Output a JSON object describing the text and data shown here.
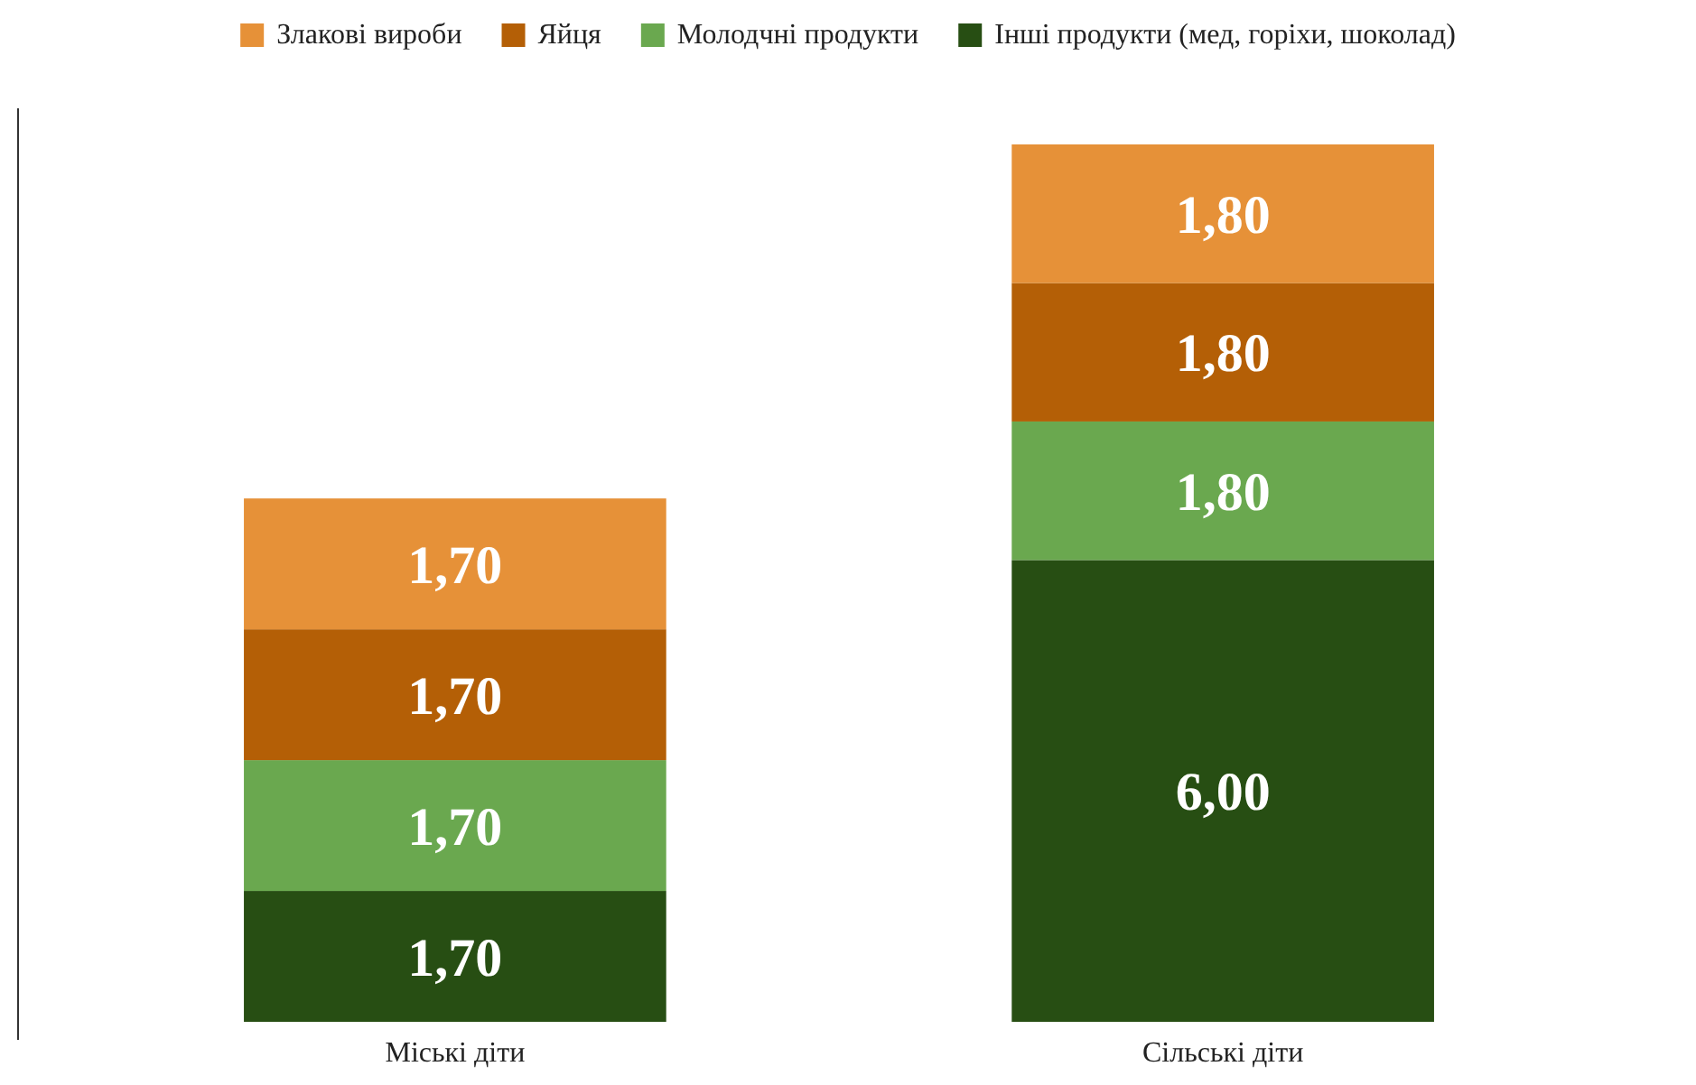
{
  "chart_data": {
    "type": "bar",
    "stacked": true,
    "legend": "top",
    "categories": [
      "Міські діти",
      "Сільські діти"
    ],
    "series": [
      {
        "name": "Інші продукти (мед, горіхи, шоколад)",
        "color": "#274e13",
        "values": [
          1.7,
          6.0
        ],
        "value_labels": [
          "1,70",
          "6,00"
        ]
      },
      {
        "name": "Молодчні продукти",
        "color": "#6aa84f",
        "values": [
          1.7,
          1.8
        ],
        "value_labels": [
          "1,70",
          "1,80"
        ]
      },
      {
        "name": "Яйця",
        "color": "#b45f06",
        "values": [
          1.7,
          1.8
        ],
        "value_labels": [
          "1,70",
          "1,80"
        ]
      },
      {
        "name": "Злакові вироби",
        "color": "#e69138",
        "values": [
          1.7,
          1.8
        ],
        "value_labels": [
          "1,70",
          "1,80"
        ]
      }
    ]
  }
}
